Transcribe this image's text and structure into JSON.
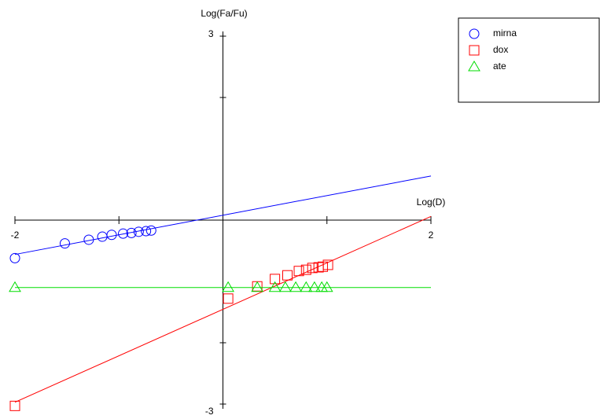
{
  "chart_data": {
    "type": "scatter",
    "xlabel": "Log(D)",
    "ylabel": "Log(Fa/Fu)",
    "xlim": [
      -2,
      2
    ],
    "ylim": [
      -3,
      3
    ],
    "xticks": [
      -2,
      2
    ],
    "yticks": [
      -3,
      3
    ],
    "minor_xticks": [
      -1,
      1
    ],
    "minor_yticks": [
      -2,
      2
    ],
    "series": [
      {
        "name": "mirna",
        "color": "#0000ff",
        "marker": "circle",
        "x": [
          -2,
          -1.52,
          -1.29,
          -1.16,
          -1.07,
          -0.96,
          -0.88,
          -0.81,
          -0.74,
          -0.69
        ],
        "values": [
          -0.62,
          -0.38,
          -0.32,
          -0.27,
          -0.24,
          -0.22,
          -0.21,
          -0.19,
          -0.18,
          -0.17
        ],
        "fit_x": [
          -2,
          2
        ],
        "fit_y": [
          -0.56,
          0.72
        ]
      },
      {
        "name": "dox",
        "color": "#ff0000",
        "marker": "square",
        "x": [
          -2,
          0.05,
          0.33,
          0.5,
          0.62,
          0.73,
          0.8,
          0.86,
          0.92,
          0.96,
          1.01
        ],
        "values": [
          -3.03,
          -1.28,
          -1.08,
          -0.96,
          -0.9,
          -0.83,
          -0.81,
          -0.78,
          -0.77,
          -0.76,
          -0.73
        ],
        "fit_x": [
          -2,
          2
        ],
        "fit_y": [
          -2.97,
          0.06
        ]
      },
      {
        "name": "ate",
        "color": "#00dd00",
        "marker": "triangle",
        "x": [
          -2,
          0.05,
          0.33,
          0.5,
          0.6,
          0.7,
          0.8,
          0.88,
          0.95,
          1.0
        ],
        "values": [
          -1.1,
          -1.1,
          -1.1,
          -1.1,
          -1.1,
          -1.1,
          -1.1,
          -1.1,
          -1.1,
          -1.1
        ],
        "fit_x": [
          -2,
          2
        ],
        "fit_y": [
          -1.1,
          -1.1
        ]
      }
    ]
  }
}
